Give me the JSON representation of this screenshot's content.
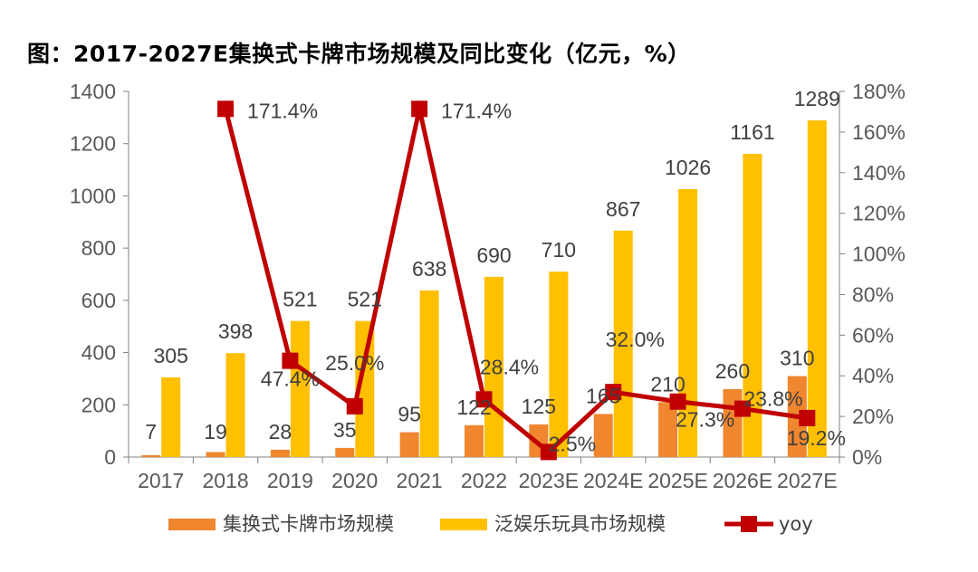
{
  "chart_data": {
    "type": "bar",
    "title": "图：2017-2027E集换式卡牌市场规模及同比变化（亿元，%）",
    "categories": [
      "2017",
      "2018",
      "2019",
      "2020",
      "2021",
      "2022",
      "2023E",
      "2024E",
      "2025E",
      "2026E",
      "2027E"
    ],
    "series": [
      {
        "name": "集换式卡牌市场规模",
        "type": "bar",
        "axis": "left",
        "color": "#F0862E",
        "values": [
          7,
          19,
          28,
          35,
          95,
          122,
          125,
          165,
          210,
          260,
          310
        ]
      },
      {
        "name": "泛娱乐玩具市场规模",
        "type": "bar",
        "axis": "left",
        "color": "#FFC000",
        "values": [
          305,
          398,
          521,
          521,
          638,
          690,
          710,
          867,
          1026,
          1161,
          1289
        ]
      },
      {
        "name": "yoy",
        "type": "line",
        "axis": "right",
        "color": "#C00000",
        "values": [
          null,
          171.4,
          47.4,
          25.0,
          171.4,
          28.4,
          2.5,
          32.0,
          27.3,
          23.8,
          19.2
        ],
        "labels": [
          "",
          "171.4%",
          "47.4%",
          "25.0%",
          "171.4%",
          "28.4%",
          "2.5%",
          "32.0%",
          "27.3%",
          "23.8%",
          "19.2%"
        ]
      }
    ],
    "y_left": {
      "ylim": [
        0,
        1400
      ],
      "ticks": [
        "0",
        "200",
        "400",
        "600",
        "800",
        "1000",
        "1200",
        "1400"
      ]
    },
    "y_right": {
      "ylim": [
        0,
        180
      ],
      "ticks": [
        "0%",
        "20%",
        "40%",
        "60%",
        "80%",
        "100%",
        "120%",
        "140%",
        "160%",
        "180%"
      ]
    },
    "grid": false,
    "legend": "bottom"
  }
}
